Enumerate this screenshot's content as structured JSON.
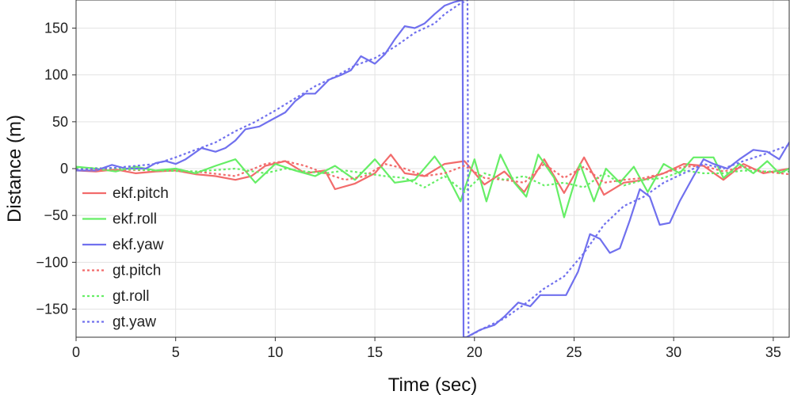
{
  "chart_data": {
    "type": "line",
    "xlabel": "Time (sec)",
    "ylabel": "Distance (m)",
    "xlim": [
      0,
      35.8
    ],
    "ylim": [
      -180,
      180
    ],
    "xticks": [
      0,
      5,
      10,
      15,
      20,
      25,
      30,
      35
    ],
    "yticks": [
      -150,
      -100,
      -50,
      0,
      50,
      100,
      150
    ],
    "grid": true,
    "legend_position": "lower-left",
    "series": [
      {
        "name": "ekf.pitch",
        "color": "#f26b6b",
        "dash": "solid",
        "x": [
          0,
          1,
          2,
          3,
          4,
          5,
          6,
          7,
          8,
          8.8,
          9.5,
          10.5,
          11.5,
          12.5,
          13,
          14,
          15,
          15.8,
          16.5,
          17.5,
          18.5,
          19.5,
          20.5,
          21.5,
          22.5,
          23.5,
          24.5,
          25.5,
          26.5,
          27.5,
          28.5,
          29.5,
          30.5,
          31.5,
          32.5,
          33.5,
          34.5,
          35.8
        ],
        "y": [
          -2,
          -3,
          -1,
          -5,
          -3,
          -2,
          -6,
          -8,
          -12,
          -8,
          3,
          8,
          -5,
          -2,
          -22,
          -16,
          -5,
          15,
          -5,
          -8,
          5,
          8,
          -17,
          -3,
          -25,
          10,
          -26,
          12,
          -28,
          -15,
          -12,
          -5,
          5,
          3,
          -12,
          5,
          -5,
          0
        ]
      },
      {
        "name": "ekf.roll",
        "color": "#66ee66",
        "dash": "solid",
        "x": [
          0,
          1,
          2,
          3,
          4,
          5,
          6,
          7,
          8,
          9,
          10,
          11,
          12,
          13,
          14,
          15,
          16,
          17,
          18,
          18.5,
          19.3,
          20,
          20.6,
          21.3,
          22,
          22.6,
          23.2,
          24,
          24.5,
          25.3,
          26,
          26.6,
          27.3,
          28,
          28.7,
          29.5,
          30.3,
          31,
          32,
          32.5,
          33.3,
          34,
          34.7,
          35.3,
          35.8
        ],
        "y": [
          2,
          0,
          -3,
          2,
          -2,
          0,
          -5,
          3,
          10,
          -15,
          5,
          -2,
          -8,
          3,
          -12,
          10,
          -15,
          -12,
          13,
          -2,
          -35,
          10,
          -35,
          15,
          -15,
          -30,
          15,
          -10,
          -52,
          5,
          -35,
          0,
          -15,
          2,
          -25,
          5,
          -5,
          12,
          12,
          -10,
          5,
          -5,
          8,
          -5,
          0
        ]
      },
      {
        "name": "ekf.yaw",
        "color": "#7070ee",
        "dash": "solid",
        "x": [
          0,
          1,
          1.8,
          2.5,
          3.5,
          4,
          4.5,
          5,
          5.5,
          6.3,
          7,
          7.5,
          8,
          8.5,
          9.2,
          9.8,
          10.5,
          11,
          11.5,
          12,
          12.7,
          13.3,
          13.8,
          14.3,
          15,
          15.5,
          16,
          16.5,
          17,
          17.5,
          18,
          18.5,
          19,
          19.4,
          19.45,
          19.55,
          19.6,
          20.3,
          21,
          21.5,
          22.2,
          22.8,
          23.3,
          24,
          24.6,
          25.2,
          25.8,
          26.3,
          26.8,
          27.3,
          27.8,
          28.3,
          28.8,
          29.3,
          29.8,
          30.3,
          31,
          31.5,
          32,
          32.7,
          33.3,
          34,
          34.7,
          35.3,
          35.8
        ],
        "y": [
          -2,
          -2,
          4,
          0,
          0,
          6,
          8,
          5,
          10,
          22,
          18,
          22,
          30,
          42,
          45,
          52,
          60,
          72,
          80,
          80,
          95,
          100,
          105,
          120,
          112,
          122,
          138,
          152,
          150,
          155,
          165,
          174,
          178,
          180,
          -180,
          -180,
          -180,
          -172,
          -167,
          -158,
          -143,
          -147,
          -135,
          -135,
          -135,
          -110,
          -70,
          -75,
          -90,
          -85,
          -55,
          -22,
          -30,
          -60,
          -58,
          -35,
          -8,
          10,
          5,
          0,
          10,
          20,
          18,
          10,
          28
        ]
      },
      {
        "name": "gt.pitch",
        "color": "#f26b6b",
        "dash": "dotted",
        "x": [
          0,
          2,
          4,
          6,
          8,
          9.5,
          10.5,
          11.5,
          12.5,
          13.5,
          14.5,
          15.5,
          16.5,
          17.5,
          18.5,
          19.5,
          20.5,
          21.5,
          22.5,
          23.5,
          24.5,
          25.5,
          26.5,
          27.5,
          28.5,
          29.5,
          30.5,
          31.5,
          32.5,
          33.5,
          34.5,
          35.8
        ],
        "y": [
          -1,
          -1,
          -2,
          -3,
          -8,
          5,
          8,
          3,
          -5,
          -12,
          -8,
          5,
          0,
          -8,
          -5,
          3,
          -10,
          -12,
          -15,
          5,
          -10,
          2,
          -15,
          -12,
          -10,
          -5,
          2,
          3,
          -3,
          2,
          -3,
          -6
        ]
      },
      {
        "name": "gt.roll",
        "color": "#66ee66",
        "dash": "dotted",
        "x": [
          0,
          2,
          4,
          6,
          8,
          9.5,
          10.5,
          11.5,
          12.5,
          13.5,
          14.5,
          15.5,
          16.5,
          17.5,
          18.5,
          19.5,
          20.5,
          21.5,
          22.5,
          23.5,
          24.5,
          25.5,
          26.5,
          27.5,
          28.5,
          29.5,
          30.5,
          31.5,
          32.5,
          33.5,
          34.5,
          35.8
        ],
        "y": [
          1,
          0,
          -2,
          -3,
          0,
          -5,
          0,
          -3,
          -5,
          -2,
          -5,
          -8,
          -10,
          -20,
          -8,
          -25,
          -5,
          -12,
          -8,
          -18,
          -15,
          -20,
          -5,
          -18,
          -12,
          -10,
          -2,
          -5,
          -5,
          -2,
          -3,
          -3
        ]
      },
      {
        "name": "gt.yaw",
        "color": "#7070ee",
        "dash": "dotted",
        "x": [
          0,
          1,
          2,
          3,
          4,
          5,
          6,
          7,
          8,
          9,
          10,
          11,
          12,
          13,
          14,
          15,
          16,
          17,
          18,
          18.5,
          19.2,
          19.65,
          19.7,
          19.8,
          20.5,
          21.5,
          22.5,
          23.5,
          24.5,
          25.5,
          26.5,
          27.5,
          28.5,
          29.5,
          30.5,
          31.5,
          32.5,
          33.5,
          34.5,
          35.8
        ],
        "y": [
          -1,
          0,
          1,
          3,
          5,
          12,
          20,
          28,
          40,
          50,
          62,
          75,
          88,
          98,
          110,
          118,
          130,
          145,
          155,
          165,
          175,
          180,
          -180,
          -178,
          -170,
          -160,
          -145,
          -128,
          -115,
          -90,
          -60,
          -40,
          -30,
          -15,
          -5,
          5,
          0,
          8,
          15,
          25
        ]
      }
    ]
  }
}
